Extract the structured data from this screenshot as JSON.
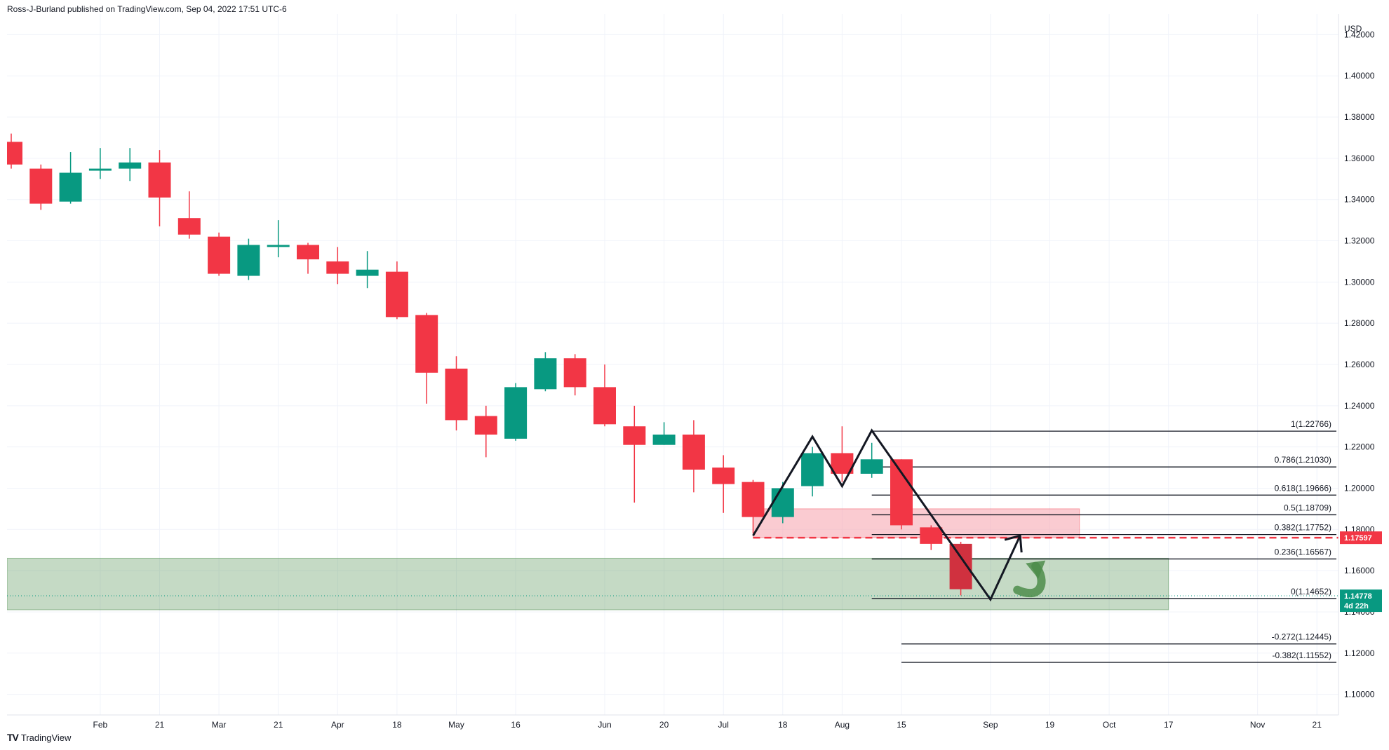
{
  "header": {
    "publisher": "Ross-J-Burland published on TradingView.com, Sep 04, 2022 17:51 UTC-6"
  },
  "footer": {
    "logo_text": "TradingView",
    "logo_mark": "TV"
  },
  "chart_data": {
    "type": "candlestick",
    "currency": "USD",
    "ylim": [
      1.09,
      1.43
    ],
    "y_ticks": [
      "1.10000",
      "1.12000",
      "1.14000",
      "1.16000",
      "1.18000",
      "1.20000",
      "1.22000",
      "1.24000",
      "1.26000",
      "1.28000",
      "1.30000",
      "1.32000",
      "1.34000",
      "1.36000",
      "1.38000",
      "1.40000",
      "1.42000"
    ],
    "x_ticks": [
      {
        "label": "Feb",
        "i": 3
      },
      {
        "label": "21",
        "i": 5
      },
      {
        "label": "Mar",
        "i": 7
      },
      {
        "label": "21",
        "i": 9
      },
      {
        "label": "Apr",
        "i": 11
      },
      {
        "label": "18",
        "i": 13
      },
      {
        "label": "May",
        "i": 15
      },
      {
        "label": "16",
        "i": 17
      },
      {
        "label": "Jun",
        "i": 20
      },
      {
        "label": "20",
        "i": 22
      },
      {
        "label": "Jul",
        "i": 24
      },
      {
        "label": "18",
        "i": 26
      },
      {
        "label": "Aug",
        "i": 28
      },
      {
        "label": "15",
        "i": 30
      },
      {
        "label": "Sep",
        "i": 33
      },
      {
        "label": "19",
        "i": 35
      },
      {
        "label": "Oct",
        "i": 37
      },
      {
        "label": "17",
        "i": 39
      },
      {
        "label": "Nov",
        "i": 42
      },
      {
        "label": "21",
        "i": 44
      }
    ],
    "candles": [
      {
        "i": 0,
        "o": 1.368,
        "h": 1.372,
        "l": 1.355,
        "c": 1.357
      },
      {
        "i": 1,
        "o": 1.355,
        "h": 1.357,
        "l": 1.335,
        "c": 1.338
      },
      {
        "i": 2,
        "o": 1.339,
        "h": 1.363,
        "l": 1.338,
        "c": 1.353
      },
      {
        "i": 3,
        "o": 1.354,
        "h": 1.365,
        "l": 1.35,
        "c": 1.355
      },
      {
        "i": 4,
        "o": 1.355,
        "h": 1.365,
        "l": 1.349,
        "c": 1.358
      },
      {
        "i": 5,
        "o": 1.358,
        "h": 1.364,
        "l": 1.327,
        "c": 1.341
      },
      {
        "i": 6,
        "o": 1.331,
        "h": 1.344,
        "l": 1.321,
        "c": 1.323
      },
      {
        "i": 7,
        "o": 1.322,
        "h": 1.324,
        "l": 1.303,
        "c": 1.304
      },
      {
        "i": 8,
        "o": 1.303,
        "h": 1.321,
        "l": 1.301,
        "c": 1.318
      },
      {
        "i": 9,
        "o": 1.317,
        "h": 1.33,
        "l": 1.312,
        "c": 1.318
      },
      {
        "i": 10,
        "o": 1.318,
        "h": 1.319,
        "l": 1.304,
        "c": 1.311
      },
      {
        "i": 11,
        "o": 1.31,
        "h": 1.317,
        "l": 1.299,
        "c": 1.304
      },
      {
        "i": 12,
        "o": 1.303,
        "h": 1.315,
        "l": 1.297,
        "c": 1.306
      },
      {
        "i": 13,
        "o": 1.305,
        "h": 1.31,
        "l": 1.282,
        "c": 1.283
      },
      {
        "i": 14,
        "o": 1.284,
        "h": 1.285,
        "l": 1.241,
        "c": 1.256
      },
      {
        "i": 15,
        "o": 1.258,
        "h": 1.264,
        "l": 1.228,
        "c": 1.233
      },
      {
        "i": 16,
        "o": 1.235,
        "h": 1.24,
        "l": 1.215,
        "c": 1.226
      },
      {
        "i": 17,
        "o": 1.224,
        "h": 1.251,
        "l": 1.223,
        "c": 1.249
      },
      {
        "i": 18,
        "o": 1.248,
        "h": 1.266,
        "l": 1.247,
        "c": 1.263
      },
      {
        "i": 19,
        "o": 1.263,
        "h": 1.265,
        "l": 1.245,
        "c": 1.249
      },
      {
        "i": 20,
        "o": 1.249,
        "h": 1.26,
        "l": 1.23,
        "c": 1.231
      },
      {
        "i": 21,
        "o": 1.23,
        "h": 1.24,
        "l": 1.193,
        "c": 1.221
      },
      {
        "i": 22,
        "o": 1.221,
        "h": 1.232,
        "l": 1.221,
        "c": 1.226
      },
      {
        "i": 23,
        "o": 1.226,
        "h": 1.233,
        "l": 1.198,
        "c": 1.209
      },
      {
        "i": 24,
        "o": 1.21,
        "h": 1.216,
        "l": 1.188,
        "c": 1.202
      },
      {
        "i": 25,
        "o": 1.203,
        "h": 1.204,
        "l": 1.178,
        "c": 1.186
      },
      {
        "i": 26,
        "o": 1.186,
        "h": 1.203,
        "l": 1.183,
        "c": 1.2
      },
      {
        "i": 27,
        "o": 1.201,
        "h": 1.22,
        "l": 1.196,
        "c": 1.217
      },
      {
        "i": 28,
        "o": 1.217,
        "h": 1.23,
        "l": 1.203,
        "c": 1.207
      },
      {
        "i": 29,
        "o": 1.207,
        "h": 1.222,
        "l": 1.205,
        "c": 1.214
      },
      {
        "i": 30,
        "o": 1.214,
        "h": 1.214,
        "l": 1.18,
        "c": 1.182
      },
      {
        "i": 31,
        "o": 1.181,
        "h": 1.182,
        "l": 1.17,
        "c": 1.173
      },
      {
        "i": 32,
        "o": 1.173,
        "h": 1.174,
        "l": 1.148,
        "c": 1.151
      }
    ],
    "fib_levels": [
      {
        "ratio": "1",
        "price": 1.22766,
        "label": "1(1.22766)"
      },
      {
        "ratio": "0.786",
        "price": 1.2103,
        "label": "0.786(1.21030)"
      },
      {
        "ratio": "0.618",
        "price": 1.19666,
        "label": "0.618(1.19666)"
      },
      {
        "ratio": "0.5",
        "price": 1.18709,
        "label": "0.5(1.18709)"
      },
      {
        "ratio": "0.382",
        "price": 1.17752,
        "label": "0.382(1.17752)"
      },
      {
        "ratio": "0.236",
        "price": 1.16567,
        "label": "0.236(1.16567)"
      },
      {
        "ratio": "0",
        "price": 1.14652,
        "label": "0(1.14652)"
      },
      {
        "ratio": "-0.272",
        "price": 1.12445,
        "label": "-0.272(1.12445)"
      },
      {
        "ratio": "-0.382",
        "price": 1.11552,
        "label": "-0.382(1.11552)"
      }
    ],
    "red_zone": {
      "i_start": 25,
      "i_end": 36,
      "top": 1.19,
      "bottom": 1.176
    },
    "green_zone": {
      "i_start": 0,
      "i_end": 39,
      "top": 1.166,
      "bottom": 1.141
    },
    "dashed_level": {
      "price": 1.17597,
      "label": "1.17597",
      "color": "#f23645"
    },
    "current_price": {
      "price": 1.14778,
      "label": "1.14778",
      "countdown": "4d 22h",
      "color": "#089981"
    },
    "pattern_line": [
      {
        "i": 25,
        "p": 1.177
      },
      {
        "i": 27,
        "p": 1.225
      },
      {
        "i": 28,
        "p": 1.201
      },
      {
        "i": 29,
        "p": 1.228
      },
      {
        "i": 33,
        "p": 1.146
      },
      {
        "i": 34,
        "p": 1.177
      }
    ],
    "colors": {
      "up": "#089981",
      "down": "#f23645",
      "grid": "#f0f3fa",
      "arrow": "#4c8c4a"
    }
  }
}
